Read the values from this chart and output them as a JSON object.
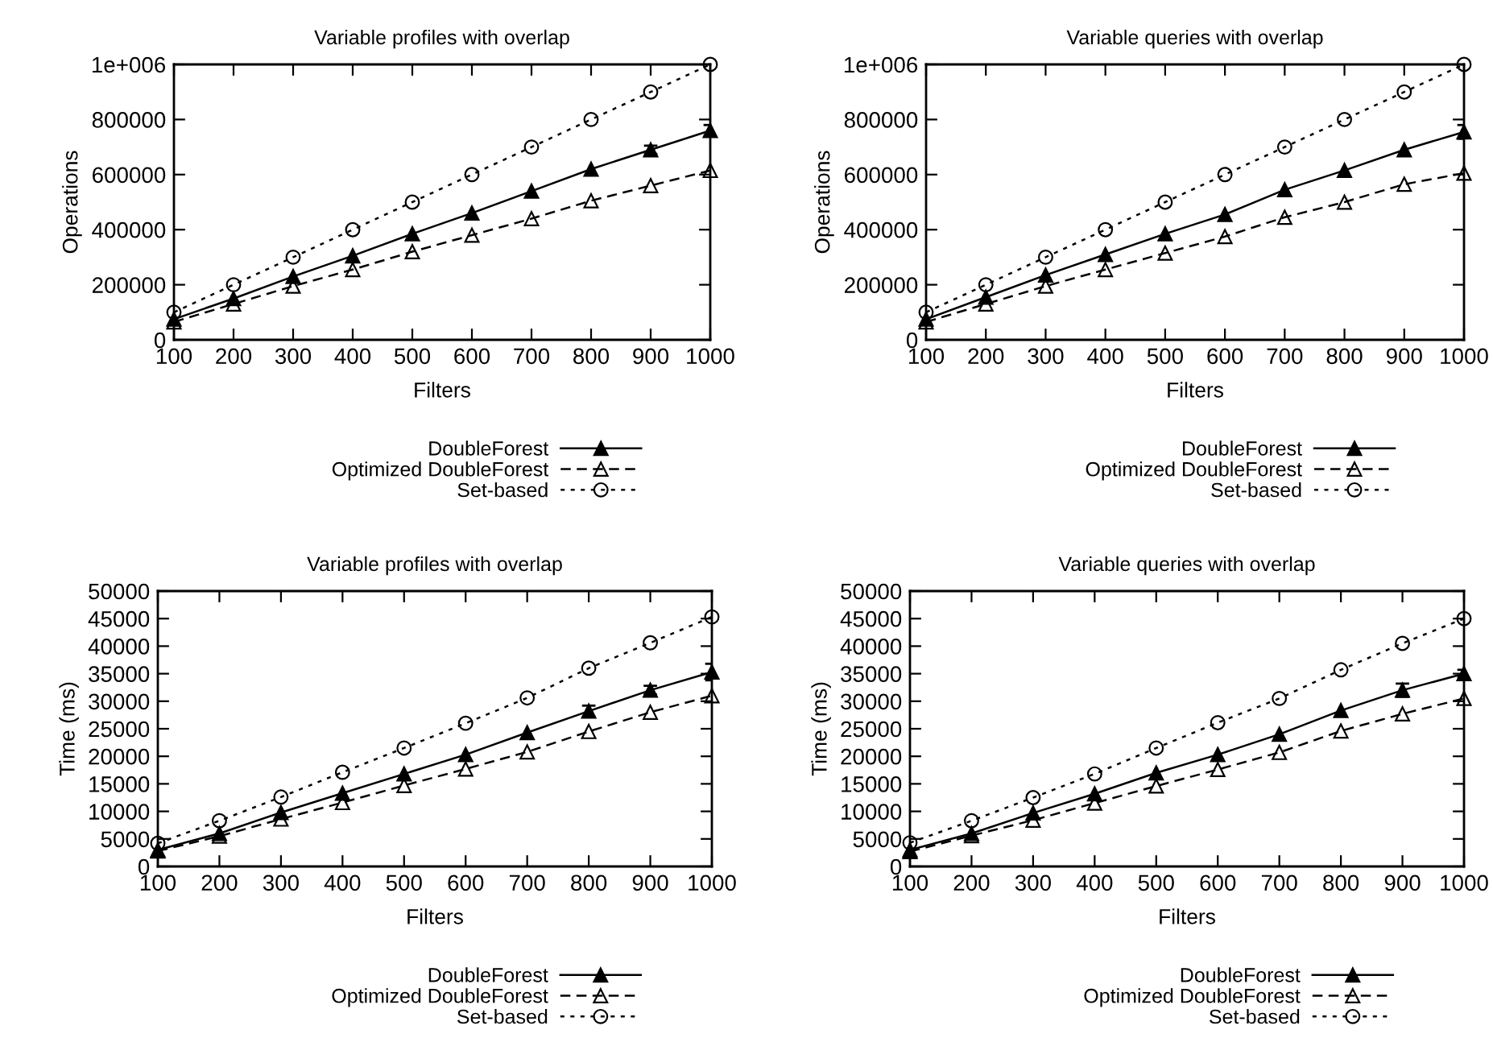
{
  "chart_data": [
    {
      "type": "line",
      "title": "Variable profiles with overlap",
      "xlabel": "Filters",
      "ylabel": "Operations",
      "x": [
        100,
        200,
        300,
        400,
        500,
        600,
        700,
        800,
        900,
        1000
      ],
      "xlim": [
        100,
        1000
      ],
      "xticks": [
        100,
        200,
        300,
        400,
        500,
        600,
        700,
        800,
        900,
        1000
      ],
      "ylim": [
        0,
        1000000
      ],
      "yticks": [
        0,
        200000,
        400000,
        600000,
        800000,
        {
          "value": 1000000,
          "label": "1e+006"
        }
      ],
      "legend": "bottom",
      "grid": false,
      "series": [
        {
          "name": "DoubleForest",
          "color": "#000000",
          "marker": "triangle",
          "line_style": "solid",
          "values": [
            75000,
            150000,
            230000,
            305000,
            385000,
            460000,
            540000,
            620000,
            690000,
            760000
          ],
          "errors": [
            null,
            null,
            null,
            null,
            null,
            null,
            null,
            null,
            15000,
            20000
          ]
        },
        {
          "name": "Optimized DoubleForest",
          "color": "#000000",
          "marker": "triangle",
          "line_style": "dashed",
          "values": [
            65000,
            130000,
            195000,
            255000,
            320000,
            380000,
            440000,
            505000,
            560000,
            615000
          ]
        },
        {
          "name": "Set-based",
          "color": "#000000",
          "marker": "circle",
          "line_style": "dotted",
          "values": [
            100000,
            200000,
            300000,
            400000,
            500000,
            600000,
            700000,
            800000,
            900000,
            1000000
          ]
        }
      ]
    },
    {
      "type": "line",
      "title": "Variable queries with overlap",
      "xlabel": "Filters",
      "ylabel": "Operations",
      "x": [
        100,
        200,
        300,
        400,
        500,
        600,
        700,
        800,
        900,
        1000
      ],
      "xlim": [
        100,
        1000
      ],
      "xticks": [
        100,
        200,
        300,
        400,
        500,
        600,
        700,
        800,
        900,
        1000
      ],
      "ylim": [
        0,
        1000000
      ],
      "yticks": [
        0,
        200000,
        400000,
        600000,
        800000,
        {
          "value": 1000000,
          "label": "1e+006"
        }
      ],
      "legend": "bottom",
      "grid": false,
      "series": [
        {
          "name": "DoubleForest",
          "color": "#000000",
          "marker": "triangle",
          "line_style": "solid",
          "values": [
            75000,
            155000,
            235000,
            310000,
            385000,
            455000,
            545000,
            615000,
            690000,
            755000
          ],
          "errors": [
            null,
            null,
            null,
            null,
            null,
            null,
            null,
            null,
            null,
            25000
          ]
        },
        {
          "name": "Optimized DoubleForest",
          "color": "#000000",
          "marker": "triangle",
          "line_style": "dashed",
          "values": [
            65000,
            130000,
            195000,
            255000,
            315000,
            375000,
            445000,
            500000,
            565000,
            605000
          ]
        },
        {
          "name": "Set-based",
          "color": "#000000",
          "marker": "circle",
          "line_style": "dotted",
          "values": [
            100000,
            200000,
            300000,
            400000,
            500000,
            600000,
            700000,
            800000,
            900000,
            1000000
          ]
        }
      ]
    },
    {
      "type": "line",
      "title": "Variable profiles with overlap",
      "xlabel": "Filters",
      "ylabel": "Time (ms)",
      "x": [
        100,
        200,
        300,
        400,
        500,
        600,
        700,
        800,
        900,
        1000
      ],
      "xlim": [
        100,
        1000
      ],
      "xticks": [
        100,
        200,
        300,
        400,
        500,
        600,
        700,
        800,
        900,
        1000
      ],
      "ylim": [
        0,
        50000
      ],
      "yticks": [
        0,
        5000,
        10000,
        15000,
        20000,
        25000,
        30000,
        35000,
        40000,
        45000,
        50000
      ],
      "legend": "bottom",
      "grid": false,
      "series": [
        {
          "name": "DoubleForest",
          "color": "#000000",
          "marker": "triangle",
          "line_style": "solid",
          "values": [
            3000,
            6000,
            9800,
            13300,
            16800,
            20300,
            24300,
            28200,
            32000,
            35300
          ],
          "errors": [
            null,
            null,
            null,
            null,
            null,
            null,
            null,
            1000,
            800,
            1500
          ]
        },
        {
          "name": "Optimized DoubleForest",
          "color": "#000000",
          "marker": "triangle",
          "line_style": "dashed",
          "values": [
            2800,
            5500,
            8600,
            11600,
            14700,
            17700,
            20800,
            24500,
            28000,
            31000
          ]
        },
        {
          "name": "Set-based",
          "color": "#000000",
          "marker": "circle",
          "line_style": "dotted",
          "values": [
            4200,
            8300,
            12600,
            17100,
            21500,
            26000,
            30600,
            36000,
            40600,
            45300
          ]
        }
      ]
    },
    {
      "type": "line",
      "title": "Variable queries with overlap",
      "xlabel": "Filters",
      "ylabel": "Time (ms)",
      "x": [
        100,
        200,
        300,
        400,
        500,
        600,
        700,
        800,
        900,
        1000
      ],
      "xlim": [
        100,
        1000
      ],
      "xticks": [
        100,
        200,
        300,
        400,
        500,
        600,
        700,
        800,
        900,
        1000
      ],
      "ylim": [
        0,
        50000
      ],
      "yticks": [
        0,
        5000,
        10000,
        15000,
        20000,
        25000,
        30000,
        35000,
        40000,
        45000,
        50000
      ],
      "legend": "bottom",
      "grid": false,
      "series": [
        {
          "name": "DoubleForest",
          "color": "#000000",
          "marker": "triangle",
          "line_style": "solid",
          "values": [
            3000,
            6000,
            9700,
            13200,
            17000,
            20300,
            24000,
            28300,
            32000,
            35000
          ],
          "errors": [
            null,
            null,
            null,
            null,
            null,
            null,
            null,
            null,
            1200,
            700
          ]
        },
        {
          "name": "Optimized DoubleForest",
          "color": "#000000",
          "marker": "triangle",
          "line_style": "dashed",
          "values": [
            2700,
            5600,
            8400,
            11500,
            14600,
            17600,
            20700,
            24600,
            27700,
            30500
          ]
        },
        {
          "name": "Set-based",
          "color": "#000000",
          "marker": "circle",
          "line_style": "dotted",
          "values": [
            4300,
            8300,
            12500,
            16800,
            21500,
            26100,
            30500,
            35700,
            40500,
            45000
          ]
        }
      ]
    }
  ]
}
